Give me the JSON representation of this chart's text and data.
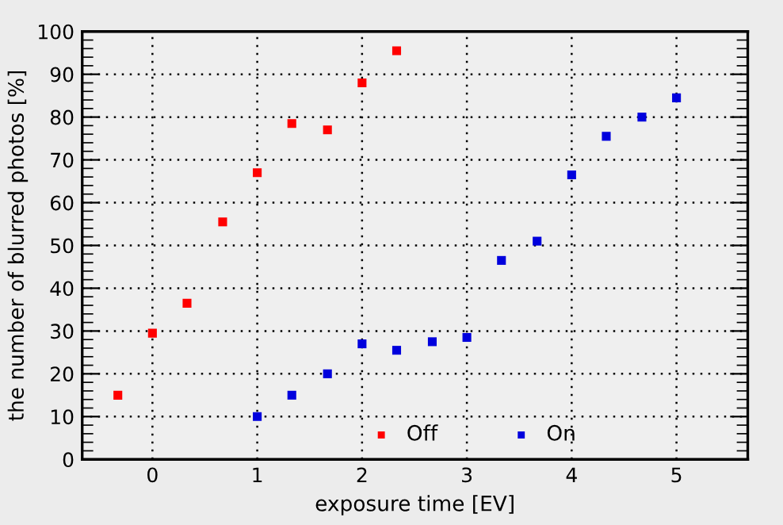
{
  "chart_data": {
    "type": "scatter",
    "xlabel": "exposure time [EV]",
    "ylabel": "the number of blurred photos [%]",
    "xlim": [
      -0.67,
      5.68
    ],
    "ylim": [
      0,
      100
    ],
    "xticks": [
      0,
      1,
      2,
      3,
      4,
      5
    ],
    "yticks": [
      0,
      10,
      20,
      30,
      40,
      50,
      60,
      70,
      80,
      90,
      100
    ],
    "grid": true,
    "legend": "bottom",
    "marker": "square",
    "series": [
      {
        "name": "Off",
        "color": "#ff0000",
        "x": [
          -0.33,
          0,
          0.33,
          0.67,
          1,
          1.33,
          1.67,
          2,
          2.33
        ],
        "values": [
          15,
          29.5,
          36.5,
          55.5,
          67,
          78.5,
          77,
          88,
          95.5
        ]
      },
      {
        "name": "On",
        "color": "#0000dd",
        "x": [
          1,
          1.33,
          1.67,
          2,
          2.33,
          2.67,
          3,
          3.33,
          3.67,
          4,
          4.33,
          4.67,
          5
        ],
        "values": [
          10,
          15,
          20,
          27,
          25.5,
          27.5,
          28.5,
          46.5,
          51,
          66.5,
          75.5,
          80,
          84.5
        ]
      }
    ]
  }
}
